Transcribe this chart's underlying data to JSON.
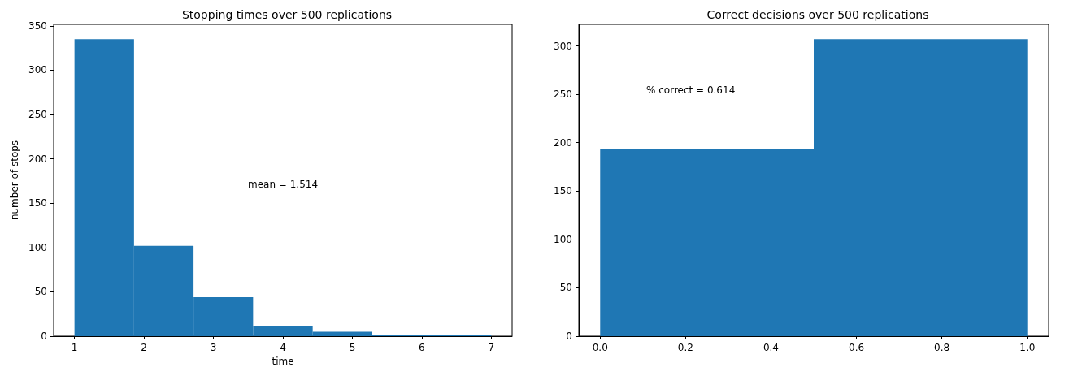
{
  "chart_data": [
    {
      "type": "histogram",
      "title": "Stopping times over 500 replications",
      "xlabel": "time",
      "ylabel": "number of stops",
      "bins": [
        1,
        1.857,
        2.714,
        3.571,
        4.429,
        5.286,
        6.143,
        7
      ],
      "values": [
        335,
        102,
        44,
        12,
        5,
        1,
        1
      ],
      "color": "#1f77b4",
      "xlim": [
        0.7,
        7.3
      ],
      "xticks": [
        1,
        2,
        3,
        4,
        5,
        6,
        7
      ],
      "ylim": [
        0,
        351.75
      ],
      "yticks": [
        0,
        50,
        100,
        150,
        200,
        250,
        300,
        350
      ],
      "grid": false,
      "annotations": [
        "mean = 1.514"
      ]
    },
    {
      "type": "histogram",
      "title": "Correct decisions over 500 replications",
      "bins": [
        0,
        0.5,
        1
      ],
      "values": [
        193,
        307
      ],
      "color": "#1f77b4",
      "xlim": [
        -0.05,
        1.05
      ],
      "xticks": [
        {
          "value": 0,
          "label": "0.0"
        },
        {
          "value": 0.2,
          "label": "0.2"
        },
        {
          "value": 0.4,
          "label": "0.4"
        },
        {
          "value": 0.6,
          "label": "0.6"
        },
        {
          "value": 0.8,
          "label": "0.8"
        },
        {
          "value": 1,
          "label": "1.0"
        }
      ],
      "ylim": [
        0,
        322.35
      ],
      "yticks": [
        0,
        50,
        100,
        150,
        200,
        250,
        300
      ],
      "grid": false,
      "annotations": [
        "% correct = 0.614"
      ]
    }
  ]
}
